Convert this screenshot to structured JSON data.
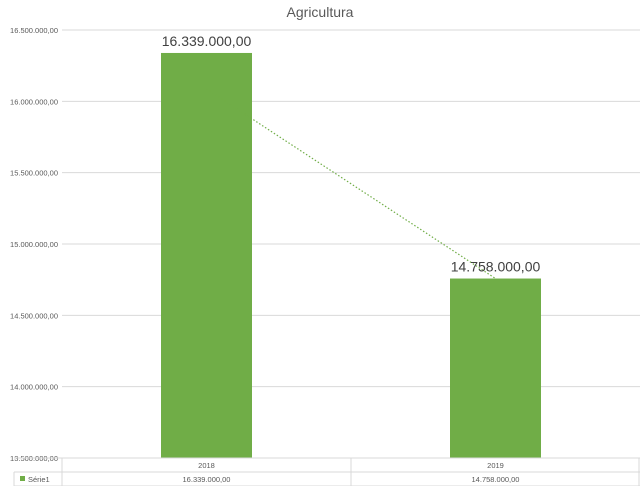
{
  "chart_data": {
    "type": "bar",
    "title": "Agricultura",
    "categories": [
      "2018",
      "2019"
    ],
    "series": [
      {
        "name": "Série1",
        "values": [
          16339000,
          14758000
        ],
        "color": "#70ad47"
      }
    ],
    "value_labels": [
      "16.339.000,00",
      "14.758.000,00"
    ],
    "ylim": [
      13500000,
      16500000
    ],
    "yticks": [
      13500000,
      14000000,
      14500000,
      15000000,
      15500000,
      16000000,
      16500000
    ],
    "ytick_labels": [
      "13.500.000,00",
      "14.000.000,00",
      "14.500.000,00",
      "15.000.000,00",
      "15.500.000,00",
      "16.000.000,00",
      "16.500.000,00"
    ],
    "trendline": {
      "type": "linear",
      "style": "dotted",
      "color": "#70ad47"
    },
    "data_table": {
      "header": [
        "2018",
        "2019"
      ],
      "rows": [
        {
          "legend": "Série1",
          "cells": [
            "16.339.000,00",
            "14.758.000,00"
          ]
        }
      ]
    },
    "grid": true,
    "xlabel": "",
    "ylabel": ""
  }
}
